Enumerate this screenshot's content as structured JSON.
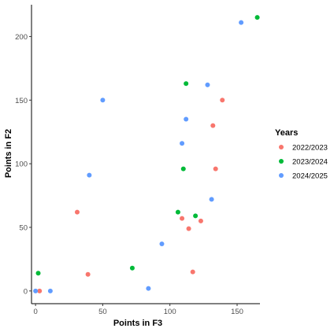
{
  "chart_data": {
    "type": "scatter",
    "title": "",
    "xlabel": "Points in F3",
    "ylabel": "Points in F2",
    "xlim": [
      -3,
      167
    ],
    "ylim": [
      -10,
      225
    ],
    "xticks": [
      0,
      50,
      100,
      150
    ],
    "yticks": [
      0,
      50,
      100,
      150,
      200
    ],
    "grid": false,
    "legend": {
      "title": "Years",
      "position": "right"
    },
    "series": [
      {
        "name": "2022/2023",
        "color": "#F8766D",
        "points": [
          [
            3,
            0
          ],
          [
            31,
            62
          ],
          [
            39,
            13
          ],
          [
            109,
            57
          ],
          [
            114,
            49
          ],
          [
            117,
            15
          ],
          [
            123,
            55
          ],
          [
            132,
            130
          ],
          [
            134,
            96
          ],
          [
            139,
            150
          ]
        ]
      },
      {
        "name": "2023/2024",
        "color": "#00BA38",
        "points": [
          [
            2,
            14
          ],
          [
            72,
            18
          ],
          [
            106,
            62
          ],
          [
            110,
            96
          ],
          [
            112,
            163
          ],
          [
            119,
            59
          ],
          [
            165,
            215
          ]
        ]
      },
      {
        "name": "2024/2025",
        "color": "#619CFF",
        "points": [
          [
            0,
            0
          ],
          [
            11,
            0
          ],
          [
            40,
            91
          ],
          [
            50,
            150
          ],
          [
            84,
            2
          ],
          [
            94,
            37
          ],
          [
            109,
            116
          ],
          [
            112,
            135
          ],
          [
            128,
            162
          ],
          [
            131,
            72
          ],
          [
            153,
            211
          ]
        ]
      }
    ]
  }
}
